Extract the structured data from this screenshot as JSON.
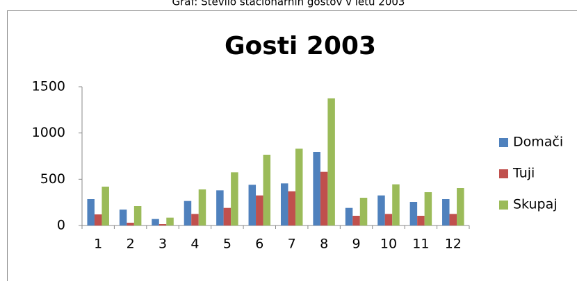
{
  "caption": "Graf: Število stacionarnih gostov v letu 2003",
  "chart_data": {
    "type": "bar",
    "title": "Gosti 2003",
    "categories": [
      "1",
      "2",
      "3",
      "4",
      "5",
      "6",
      "7",
      "8",
      "9",
      "10",
      "11",
      "12"
    ],
    "series": [
      {
        "name": "Domači",
        "color": "#4f81bd",
        "values": [
          285,
          172,
          70,
          265,
          380,
          440,
          455,
          795,
          190,
          325,
          255,
          285
        ]
      },
      {
        "name": "Tuji",
        "color": "#c0504d",
        "values": [
          120,
          30,
          15,
          125,
          190,
          325,
          370,
          580,
          105,
          125,
          105,
          125
        ]
      },
      {
        "name": "Skupaj",
        "color": "#9bbb59",
        "values": [
          420,
          210,
          85,
          390,
          575,
          765,
          830,
          1375,
          300,
          445,
          360,
          405
        ]
      }
    ],
    "ylim": [
      0,
      1500
    ],
    "yticks": [
      0,
      500,
      1000,
      1500
    ],
    "grid": false,
    "legend": "right"
  }
}
